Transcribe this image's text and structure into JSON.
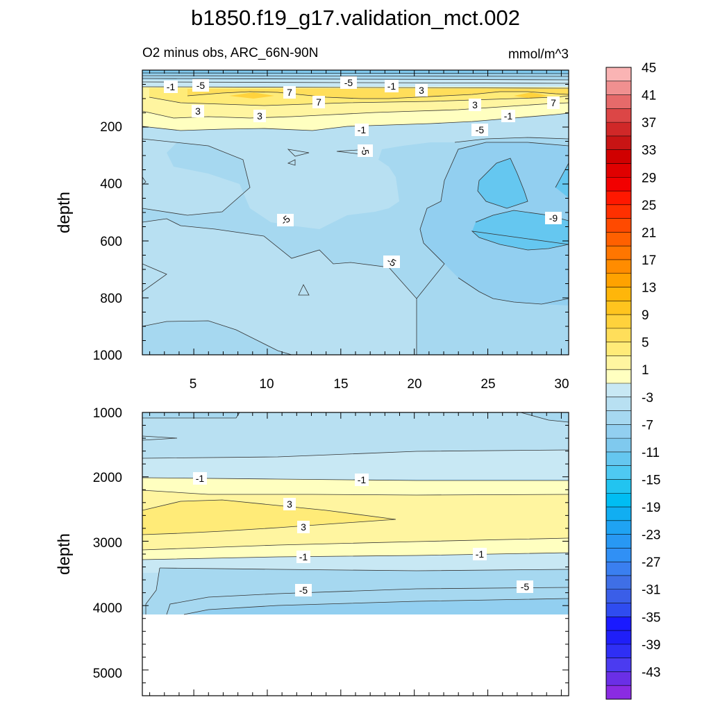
{
  "chart_data": [
    {
      "type": "heatmap",
      "title": "b1850.f19_g17.validation_mct.002",
      "subtitle_left": "O2 minus obs, ARC_66N-90N",
      "subtitle_right": "mmol/m^3",
      "xlabel": "",
      "ylabel": "depth",
      "xlim": [
        1.5,
        30.5
      ],
      "ylim": [
        0,
        1000
      ],
      "y_inverted": true,
      "x_ticks": [
        "5",
        "10",
        "15",
        "20",
        "25",
        "30"
      ],
      "y_ticks": [
        "200",
        "400",
        "600",
        "800",
        "1000"
      ],
      "contour_labels": [
        "-1",
        "-5",
        "-5",
        "-1",
        "3",
        "7",
        "7",
        "3",
        "3",
        "3",
        "7",
        "-1",
        "-5",
        "-1",
        "-5",
        "-5",
        "-5",
        "-9"
      ]
    },
    {
      "type": "heatmap",
      "xlim": [
        1.5,
        30.5
      ],
      "ylim": [
        1000,
        5400
      ],
      "y_inverted": true,
      "ylabel": "depth",
      "y_ticks": [
        "1000",
        "2000",
        "3000",
        "4000",
        "5000"
      ],
      "ocean_floor_depth": 4100,
      "contour_labels": [
        "-1",
        "-1",
        "3",
        "3",
        "-1",
        "-1",
        "-5",
        "-5"
      ]
    },
    {
      "type": "colorbar",
      "levels": [
        -45,
        -43,
        -41,
        -39,
        -37,
        -35,
        -33,
        -31,
        -29,
        -27,
        -25,
        -23,
        -21,
        -19,
        -17,
        -15,
        -13,
        -11,
        -9,
        -7,
        -5,
        -3,
        -1,
        1,
        3,
        5,
        7,
        9,
        11,
        13,
        15,
        17,
        19,
        21,
        23,
        25,
        27,
        29,
        31,
        33,
        35,
        37,
        39,
        41,
        43,
        45
      ],
      "tick_labels": [
        "45",
        "41",
        "37",
        "33",
        "29",
        "25",
        "21",
        "17",
        "13",
        "9",
        "5",
        "1",
        "-3",
        "-7",
        "-11",
        "-15",
        "-19",
        "-23",
        "-27",
        "-31",
        "-35",
        "-39",
        "-43"
      ],
      "colors": [
        "#8a2be2",
        "#6a2fe6",
        "#4b3bf0",
        "#2f2ff5",
        "#1f1ff8",
        "#1a1aff",
        "#2f4cf0",
        "#3a5ee8",
        "#3f6fe6",
        "#3a7ff0",
        "#3090f5",
        "#2898f3",
        "#1fa3f3",
        "#11aef2",
        "#00bdf3",
        "#22c4f0",
        "#4ec9f2",
        "#65c7f0",
        "#7fc9ee",
        "#92cff0",
        "#a6d8f0",
        "#b8e0f2",
        "#c8e8f4",
        "#ffffc0",
        "#fff5a0",
        "#ffeb78",
        "#ffde5a",
        "#ffd23c",
        "#ffc41e",
        "#ffb60a",
        "#ffa200",
        "#ff8c00",
        "#ff7600",
        "#ff6000",
        "#ff4a00",
        "#ff3000",
        "#ff1800",
        "#f20000",
        "#e00000",
        "#d00000",
        "#c81414",
        "#d02828",
        "#dc4646",
        "#e66a6a",
        "#f09090",
        "#fab4b4"
      ]
    }
  ]
}
